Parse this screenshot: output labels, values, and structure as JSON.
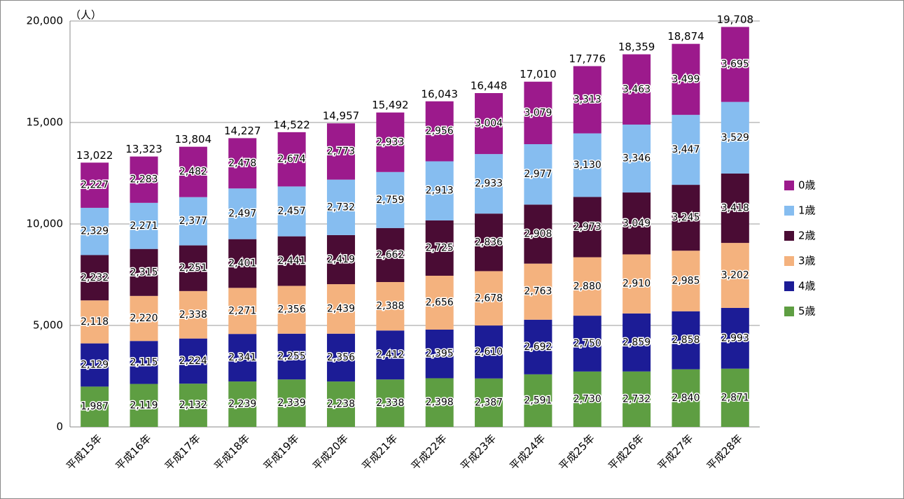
{
  "chart_data": {
    "type": "stacked-bar",
    "y_label": "（人）",
    "categories": [
      "平成15年",
      "平成16年",
      "平成17年",
      "平成18年",
      "平成19年",
      "平成20年",
      "平成21年",
      "平成22年",
      "平成23年",
      "平成24年",
      "平成25年",
      "平成26年",
      "平成27年",
      "平成28年"
    ],
    "series": [
      {
        "name": "0歳",
        "color": "#9c1a8c",
        "values": [
          2227,
          2283,
          2482,
          2478,
          2674,
          2773,
          2933,
          2956,
          3004,
          3079,
          3313,
          3463,
          3499,
          3695
        ],
        "value_labels": [
          "2,227",
          "2,283",
          "2,482",
          "2,478",
          "2,674",
          "2,773",
          "2,933",
          "2,956",
          "3,004",
          "3,079",
          "3,313",
          "3,463",
          "3,499",
          "3,695"
        ]
      },
      {
        "name": "1歳",
        "color": "#86bdf0",
        "values": [
          2329,
          2271,
          2377,
          2497,
          2457,
          2732,
          2759,
          2913,
          2933,
          2977,
          3130,
          3346,
          3447,
          3529
        ],
        "value_labels": [
          "2,329",
          "2,271",
          "2,377",
          "2,497",
          "2,457",
          "2,732",
          "2,759",
          "2,913",
          "2,933",
          "2,977",
          "3,130",
          "3,346",
          "3,447",
          "3,529"
        ]
      },
      {
        "name": "2歳",
        "color": "#4a0c34",
        "values": [
          2232,
          2315,
          2251,
          2401,
          2441,
          2419,
          2662,
          2725,
          2836,
          2908,
          2973,
          3049,
          3245,
          3418
        ],
        "value_labels": [
          "2,232",
          "2,315",
          "2,251",
          "2,401",
          "2,441",
          "2,419",
          "2,662",
          "2,725",
          "2,836",
          "2,908",
          "2,973",
          "3,049",
          "3,245",
          "3,418"
        ]
      },
      {
        "name": "3歳",
        "color": "#f4b27e",
        "values": [
          2118,
          2220,
          2338,
          2271,
          2356,
          2439,
          2388,
          2656,
          2678,
          2763,
          2880,
          2910,
          2985,
          3202
        ],
        "value_labels": [
          "2,118",
          "2,220",
          "2,338",
          "2,271",
          "2,356",
          "2,439",
          "2,388",
          "2,656",
          "2,678",
          "2,763",
          "2,880",
          "2,910",
          "2,985",
          "3,202"
        ]
      },
      {
        "name": "4歳",
        "color": "#1c1c96",
        "values": [
          2129,
          2115,
          2224,
          2341,
          2255,
          2356,
          2412,
          2395,
          2610,
          2692,
          2750,
          2859,
          2858,
          2993
        ],
        "value_labels": [
          "2,129",
          "2,115",
          "2,224",
          "2,341",
          "2,255",
          "2,356",
          "2,412",
          "2,395",
          "2,610",
          "2,692",
          "2,750",
          "2,859",
          "2,858",
          "2,993"
        ]
      },
      {
        "name": "5歳",
        "color": "#5e9e42",
        "values": [
          1987,
          2119,
          2132,
          2239,
          2339,
          2238,
          2338,
          2398,
          2387,
          2591,
          2730,
          2732,
          2840,
          2871
        ],
        "value_labels": [
          "1,987",
          "2,119",
          "2,132",
          "2,239",
          "2,339",
          "2,238",
          "2,338",
          "2,398",
          "2,387",
          "2,591",
          "2,730",
          "2,732",
          "2,840",
          "2,871"
        ]
      }
    ],
    "totals": [
      13022,
      13323,
      13804,
      14227,
      14522,
      14957,
      15492,
      16043,
      16448,
      17010,
      17776,
      18359,
      18874,
      19708
    ],
    "total_labels": [
      "13,022",
      "13,323",
      "13,804",
      "14,227",
      "14,522",
      "14,957",
      "15,492",
      "16,043",
      "16,448",
      "17,010",
      "17,776",
      "18,359",
      "18,874",
      "19,708"
    ],
    "ylim": [
      0,
      20000
    ],
    "yticks": [
      0,
      {
        "value": 5000,
        "label": "5,000"
      },
      {
        "value": 10000,
        "label": "10,000"
      },
      {
        "value": 15000,
        "label": "15,000"
      },
      {
        "value": 20000,
        "label": "20,000"
      }
    ],
    "grid": true,
    "legend": "right"
  }
}
